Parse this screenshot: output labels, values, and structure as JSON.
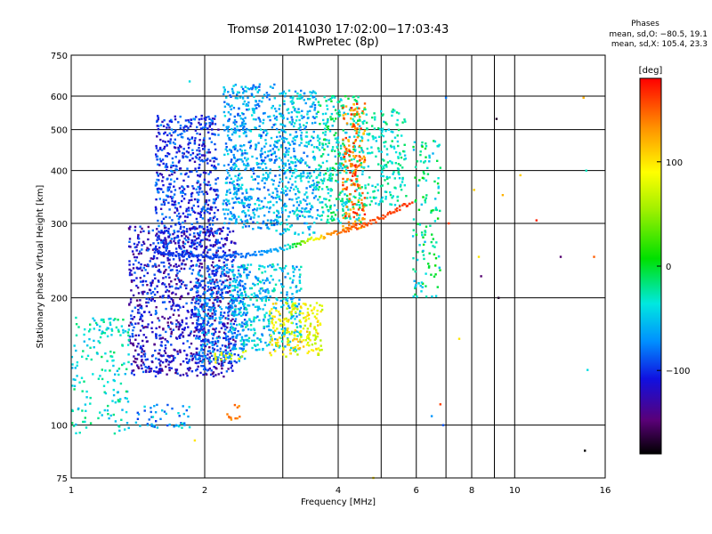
{
  "chart_data": {
    "type": "scatter",
    "title": "Tromsø 20141030 17:02:00−17:03:43",
    "subtitle": "RwPretec (8p)",
    "stats": {
      "heading": "Phases",
      "line1": "mean, sd,O: −80.5, 19.1",
      "line2": "mean, sd,X: 105.4, 23.3"
    },
    "xlabel": "Frequency [MHz]",
    "ylabel": "Stationary phase Virtual Height [km]",
    "xscale": "log",
    "yscale": "log",
    "xlim": [
      1,
      16
    ],
    "ylim": [
      75,
      750
    ],
    "xticks": [
      1,
      2,
      4,
      6,
      8,
      10,
      16
    ],
    "xtick_labels": [
      "1",
      "2",
      "4",
      "6",
      "8",
      "10",
      "16"
    ],
    "x_minor_ticks": [
      3,
      5,
      7,
      9
    ],
    "yticks": [
      75,
      100,
      200,
      300,
      400,
      500,
      600,
      750
    ],
    "ytick_labels": [
      "75",
      "100",
      "200",
      "300",
      "400",
      "500",
      "600",
      "750"
    ],
    "grid": true,
    "colorbar": {
      "label": "[deg]",
      "range": [
        -180,
        180
      ],
      "ticks": [
        100,
        0,
        -100
      ],
      "tick_labels": [
        "100",
        "0",
        "−100"
      ]
    },
    "clusters": [
      {
        "x": [
          1.35,
          2.35
        ],
        "y": [
          130,
          295
        ],
        "phase": [
          -150,
          -80
        ],
        "density": 0.9
      },
      {
        "x": [
          1.55,
          2.15
        ],
        "y": [
          250,
          540
        ],
        "phase": [
          -130,
          -70
        ],
        "density": 0.9
      },
      {
        "x": [
          1.9,
          2.5
        ],
        "y": [
          140,
          240
        ],
        "phase": [
          -100,
          -50
        ],
        "density": 0.9
      },
      {
        "x": [
          2.2,
          2.9
        ],
        "y": [
          290,
          640
        ],
        "phase": [
          -95,
          -35
        ],
        "density": 0.9
      },
      {
        "x": [
          2.3,
          3.3
        ],
        "y": [
          150,
          240
        ],
        "phase": [
          -80,
          -20
        ],
        "density": 0.8
      },
      {
        "x": [
          2.9,
          3.6
        ],
        "y": [
          280,
          620
        ],
        "phase": [
          -85,
          -25
        ],
        "density": 0.9
      },
      {
        "x": [
          3.6,
          4.5
        ],
        "y": [
          300,
          600
        ],
        "phase": [
          -60,
          0
        ],
        "density": 0.8
      },
      {
        "x": [
          2.8,
          3.7
        ],
        "y": [
          145,
          195
        ],
        "phase": [
          60,
          120
        ],
        "density": 0.85
      },
      {
        "x": [
          2.1,
          2.5
        ],
        "y": [
          140,
          150
        ],
        "phase": [
          60,
          100
        ],
        "density": 0.6
      },
      {
        "x": [
          4.1,
          4.6
        ],
        "y": [
          290,
          580
        ],
        "phase": [
          110,
          175
        ],
        "density": 0.9
      },
      {
        "x": [
          4.5,
          5.7
        ],
        "y": [
          330,
          560
        ],
        "phase": [
          -50,
          -10
        ],
        "density": 0.6
      },
      {
        "x": [
          5.9,
          6.8
        ],
        "y": [
          200,
          470
        ],
        "phase": [
          -60,
          10
        ],
        "density": 0.4
      },
      {
        "x": [
          1.0,
          1.35
        ],
        "y": [
          95,
          180
        ],
        "phase": [
          -60,
          -10
        ],
        "density": 0.35
      },
      {
        "x": [
          1.4,
          1.85
        ],
        "y": [
          98,
          112
        ],
        "phase": [
          -100,
          -30
        ],
        "density": 0.5
      },
      {
        "x": [
          2.25,
          2.4
        ],
        "y": [
          103,
          113
        ],
        "phase": [
          130,
          150
        ],
        "density": 0.7
      }
    ],
    "traces": [
      {
        "name": "",
        "x": [
          1.55,
          2.0,
          2.5,
          3.0,
          3.4,
          3.8,
          4.2,
          4.7,
          5.3,
          5.9
        ],
        "y": [
          257,
          250,
          252,
          262,
          272,
          282,
          290,
          300,
          318,
          340
        ],
        "phase": [
          -100,
          -95,
          -80,
          -60,
          60,
          130,
          150,
          155,
          160,
          165
        ]
      }
    ],
    "outliers": [
      {
        "x": 7.0,
        "y": 595,
        "phase": -80
      },
      {
        "x": 7.1,
        "y": 300,
        "phase": 160
      },
      {
        "x": 8.1,
        "y": 360,
        "phase": 110
      },
      {
        "x": 8.3,
        "y": 250,
        "phase": 100
      },
      {
        "x": 8.4,
        "y": 225,
        "phase": -150
      },
      {
        "x": 9.1,
        "y": 530,
        "phase": -170
      },
      {
        "x": 9.2,
        "y": 200,
        "phase": -170
      },
      {
        "x": 9.4,
        "y": 350,
        "phase": 120
      },
      {
        "x": 10.3,
        "y": 390,
        "phase": 110
      },
      {
        "x": 11.2,
        "y": 305,
        "phase": 170
      },
      {
        "x": 12.7,
        "y": 250,
        "phase": -150
      },
      {
        "x": 14.3,
        "y": 595,
        "phase": 120
      },
      {
        "x": 14.5,
        "y": 400,
        "phase": -30
      },
      {
        "x": 14.6,
        "y": 135,
        "phase": -40
      },
      {
        "x": 14.4,
        "y": 87,
        "phase": -180
      },
      {
        "x": 15.1,
        "y": 250,
        "phase": 150
      },
      {
        "x": 6.5,
        "y": 105,
        "phase": -70
      },
      {
        "x": 6.8,
        "y": 112,
        "phase": 160
      },
      {
        "x": 6.9,
        "y": 100,
        "phase": -90
      },
      {
        "x": 7.5,
        "y": 160,
        "phase": 100
      },
      {
        "x": 4.8,
        "y": 75,
        "phase": 100
      },
      {
        "x": 1.9,
        "y": 92,
        "phase": 100
      },
      {
        "x": 1.85,
        "y": 650,
        "phase": -40
      }
    ]
  }
}
